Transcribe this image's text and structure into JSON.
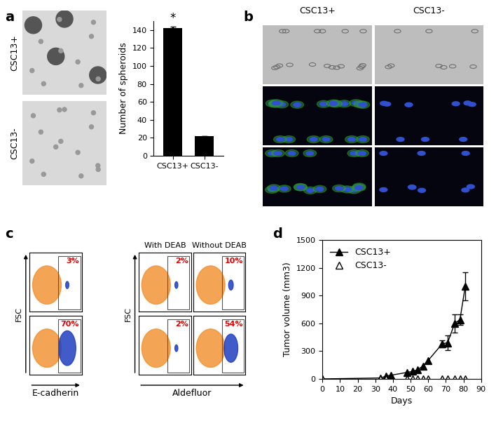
{
  "chart_data": [
    {
      "type": "bar",
      "ylabel": "Number of spheroids",
      "categories": [
        "CSC13+",
        "CSC13-"
      ],
      "values": [
        142,
        22
      ],
      "errors": [
        2,
        null
      ],
      "color": "#000000",
      "ylim": [
        0,
        150
      ],
      "yticks": [
        0,
        20,
        40,
        60,
        80,
        100,
        120,
        140
      ],
      "annotations": [
        {
          "category": "CSC13+",
          "text": "*"
        }
      ]
    },
    {
      "type": "line",
      "xlabel": "Days",
      "ylabel": "Tumor volume (mm3)",
      "xlim": [
        0,
        90
      ],
      "xticks": [
        0,
        10,
        20,
        30,
        40,
        50,
        60,
        70,
        80,
        90
      ],
      "ylim": [
        0,
        1500
      ],
      "yticks": [
        0,
        300,
        600,
        900,
        1200,
        1500
      ],
      "legend": "upper left",
      "series": [
        {
          "name": "CSC13+",
          "color": "#000000",
          "marker": "triangle",
          "line_style": "solid",
          "x": [
            0,
            33,
            36,
            39,
            48,
            51,
            54,
            57,
            60,
            68,
            71,
            75,
            78,
            81
          ],
          "values": [
            0,
            10,
            30,
            40,
            70,
            80,
            100,
            140,
            200,
            380,
            390,
            600,
            640,
            1000
          ],
          "errors": [
            null,
            null,
            null,
            null,
            null,
            null,
            null,
            null,
            null,
            40,
            80,
            100,
            60,
            150
          ]
        },
        {
          "name": "CSC13-",
          "color": "#000000",
          "marker": "triangle_open",
          "line_style": "none",
          "x": [
            0,
            33,
            36,
            48,
            51,
            54,
            57,
            60,
            68,
            71,
            75,
            78,
            81
          ],
          "values": [
            0,
            0,
            0,
            0,
            0,
            0,
            0,
            0,
            0,
            0,
            0,
            0,
            0
          ],
          "errors": [
            null,
            null,
            null,
            null,
            null,
            null,
            null,
            null,
            null,
            null,
            null,
            null,
            null
          ]
        }
      ]
    }
  ],
  "panel_labels": [
    "a",
    "b",
    "c",
    "d"
  ],
  "panel_a_images": {
    "rows": [
      "CSC13+",
      "CSC13-"
    ]
  },
  "panel_b_images": {
    "columns": [
      "CSC13+",
      "CSC13-"
    ],
    "rows": 3
  },
  "flow_panels": [
    {
      "xlabel": "E-cadherin",
      "ylabel": "FSC",
      "column_titles": [],
      "tick_labels": false,
      "gates": [
        [
          {
            "value": 3,
            "label": "3%"
          }
        ],
        [
          {
            "value": 70,
            "label": "70%"
          }
        ]
      ]
    },
    {
      "xlabel": "Aldefluor",
      "ylabel": "FSC",
      "column_titles": [
        "With DEAB",
        "Without DEAB"
      ],
      "tick_labels": false,
      "gates": [
        [
          {
            "value": 2,
            "label": "2%"
          },
          {
            "value": 10,
            "label": "10%"
          }
        ],
        [
          {
            "value": 2,
            "label": "2%"
          },
          {
            "value": 54,
            "label": "54%"
          }
        ]
      ]
    }
  ]
}
